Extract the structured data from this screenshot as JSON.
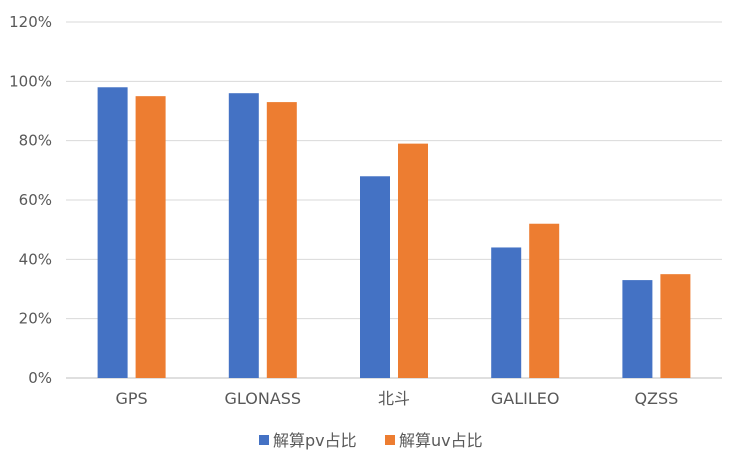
{
  "chart_data": {
    "type": "bar",
    "title": "",
    "xlabel": "",
    "ylabel": "",
    "categories": [
      "GPS",
      "GLONASS",
      "北斗",
      "GALILEO",
      "QZSS"
    ],
    "series": [
      {
        "name": "解算pv占比",
        "color": "#4472c4",
        "values": [
          98,
          96,
          68,
          44,
          33
        ]
      },
      {
        "name": "解算uv占比",
        "color": "#ed7d31",
        "values": [
          95,
          93,
          79,
          52,
          35
        ]
      }
    ],
    "ylim": [
      0,
      120
    ],
    "yticks": [
      "0%",
      "20%",
      "40%",
      "60%",
      "80%",
      "100%",
      "120%"
    ],
    "grid": true,
    "legend_position": "bottom"
  }
}
